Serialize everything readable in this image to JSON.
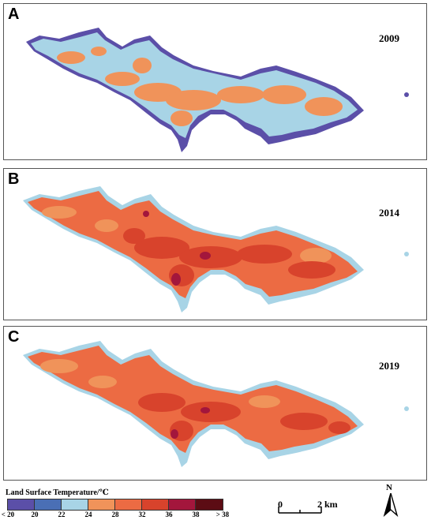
{
  "panels": [
    {
      "label": "A",
      "year": "2009"
    },
    {
      "label": "B",
      "year": "2014"
    },
    {
      "label": "C",
      "year": "2019"
    }
  ],
  "legend": {
    "title": "Land Surface Temperature/℃",
    "classes": [
      {
        "tick": "< 20",
        "color": "#5b4fa8"
      },
      {
        "tick": "20",
        "color": "#4a6fb5"
      },
      {
        "tick": "22",
        "color": "#a8d4e6"
      },
      {
        "tick": "24",
        "color": "#f0935a"
      },
      {
        "tick": "28",
        "color": "#ec6b43"
      },
      {
        "tick": "32",
        "color": "#d8432c"
      },
      {
        "tick": "36",
        "color": "#a3163c"
      },
      {
        "tick": "38",
        "color": "#5c0c14"
      }
    ],
    "last_tick": "> 38"
  },
  "scale_bar": {
    "start": "0",
    "end": "2 km"
  },
  "north_arrow": {
    "label": "N"
  },
  "colors": {
    "cold_edge": "#5b4fa8",
    "cool": "#a8d4e6",
    "mid_blue": "#4a6fb5",
    "warm": "#f0935a",
    "hot": "#ec6b43",
    "hotter": "#d8432c",
    "hottest": "#a3163c"
  }
}
